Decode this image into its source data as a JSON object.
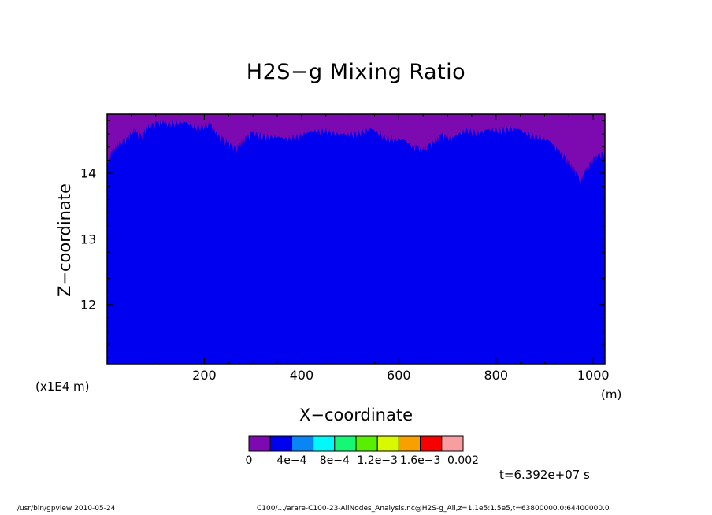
{
  "chart_data": {
    "type": "heatmap",
    "title": "H2S−g Mixing Ratio",
    "xlabel": "X−coordinate",
    "ylabel": "Z−coordinate",
    "x_unit": "(m)",
    "y_scale_label": "(x1E4 m)",
    "xlim": [
      0,
      1024
    ],
    "ylim": [
      11.1,
      14.9
    ],
    "x_ticks": [
      200,
      400,
      600,
      800,
      1000
    ],
    "x_tick_labels": [
      "200",
      "400",
      "600",
      "800",
      "1000"
    ],
    "y_ticks": [
      12,
      13,
      14
    ],
    "y_tick_labels": [
      "12",
      "13",
      "14"
    ],
    "fill_color": "#0000f0",
    "top_layer_color": "#7c0ab0",
    "top_layer_boundary": {
      "x": [
        0,
        10,
        25,
        40,
        55,
        70,
        85,
        100,
        120,
        150,
        180,
        210,
        230,
        250,
        265,
        280,
        300,
        330,
        360,
        390,
        420,
        450,
        480,
        510,
        540,
        570,
        600,
        630,
        650,
        670,
        690,
        710,
        740,
        770,
        800,
        830,
        860,
        890,
        920,
        940,
        955,
        965,
        975,
        985,
        1000,
        1010,
        1024
      ],
      "z": [
        14.15,
        14.35,
        14.5,
        14.55,
        14.7,
        14.6,
        14.75,
        14.8,
        14.82,
        14.8,
        14.75,
        14.78,
        14.6,
        14.5,
        14.4,
        14.55,
        14.65,
        14.6,
        14.55,
        14.6,
        14.65,
        14.7,
        14.6,
        14.65,
        14.7,
        14.6,
        14.55,
        14.45,
        14.4,
        14.5,
        14.62,
        14.55,
        14.7,
        14.65,
        14.7,
        14.72,
        14.65,
        14.6,
        14.45,
        14.3,
        14.15,
        14.05,
        13.9,
        14.1,
        14.25,
        14.3,
        14.35
      ]
    },
    "colorbar": {
      "colors": [
        "#7c0ab0",
        "#0000f0",
        "#0a86f4",
        "#00f8f8",
        "#14f876",
        "#58f000",
        "#d8f800",
        "#f8a000",
        "#f80000",
        "#f89ea0"
      ],
      "labels": [
        "0",
        "4e−4",
        "8e−4",
        "1.2e−3",
        "1.6e−3",
        "0.002"
      ]
    }
  },
  "time_label": "t=6.392e+07 s",
  "footer": {
    "left": "/usr/bin/gpview   2010-05-24",
    "right": "C100/.../arare-C100-23-AllNodes_Analysis.nc@H2S-g_All,z=1.1e5:1.5e5,t=63800000.0:64400000.0"
  }
}
